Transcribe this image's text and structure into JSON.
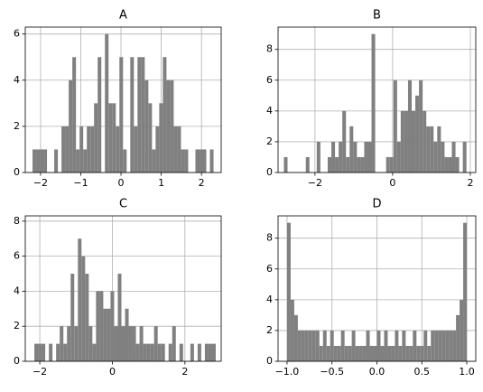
{
  "chart_data": [
    {
      "type": "histogram",
      "title": "A",
      "color": "#808080",
      "grid": true,
      "bins": [
        -2.2,
        -2.11,
        -2.02,
        -1.93,
        -1.84,
        -1.75,
        -1.66,
        -1.57,
        -1.48,
        -1.39,
        -1.3,
        -1.21,
        -1.12,
        -1.03,
        -0.94,
        -0.85,
        -0.76,
        -0.67,
        -0.58,
        -0.49,
        -0.4,
        -0.31,
        -0.22,
        -0.13,
        -0.04,
        0.05,
        0.14,
        0.23,
        0.32,
        0.41,
        0.5,
        0.59,
        0.68,
        0.77,
        0.86,
        0.95,
        1.04,
        1.13,
        1.22,
        1.31,
        1.4,
        1.49,
        1.58,
        1.67,
        1.76,
        1.85,
        1.94,
        2.03,
        2.12,
        2.21,
        2.3
      ],
      "values": [
        1,
        1,
        1,
        1,
        0,
        0,
        1,
        0,
        2,
        2,
        4,
        5,
        1,
        2,
        1,
        2,
        2,
        3,
        5,
        0,
        6,
        3,
        3,
        2,
        5,
        1,
        0,
        5,
        2,
        5,
        5,
        4,
        3,
        1,
        2,
        3,
        5,
        4,
        4,
        2,
        2,
        1,
        1,
        0,
        0,
        1,
        1,
        1,
        0,
        1
      ],
      "xlim": [
        -2.38,
        2.49
      ],
      "ylim": [
        0,
        6.3
      ],
      "xticks": [
        {
          "value": -2,
          "label": "−2"
        },
        {
          "value": -1,
          "label": "−1"
        },
        0,
        1,
        2
      ],
      "yticks": [
        0,
        2,
        4,
        6
      ]
    },
    {
      "type": "histogram",
      "title": "B",
      "color": "#808080",
      "grid": true,
      "bins": [
        -2.8,
        -2.706,
        -2.612,
        -2.518,
        -2.424,
        -2.33,
        -2.236,
        -2.142,
        -2.048,
        -1.954,
        -1.86,
        -1.766,
        -1.672,
        -1.578,
        -1.484,
        -1.39,
        -1.296,
        -1.202,
        -1.108,
        -1.014,
        -0.92,
        -0.826,
        -0.732,
        -0.638,
        -0.544,
        -0.45,
        -0.356,
        -0.262,
        -0.168,
        -0.074,
        0.02,
        0.114,
        0.208,
        0.302,
        0.396,
        0.49,
        0.584,
        0.678,
        0.772,
        0.866,
        0.96,
        1.054,
        1.148,
        1.242,
        1.336,
        1.43,
        1.524,
        1.618,
        1.712,
        1.806,
        1.9
      ],
      "values": [
        1,
        0,
        0,
        0,
        0,
        0,
        1,
        0,
        0,
        2,
        0,
        0,
        1,
        2,
        1,
        2,
        4,
        1,
        3,
        2,
        1,
        1,
        2,
        2,
        9,
        0,
        0,
        0,
        1,
        1,
        6,
        2,
        4,
        4,
        6,
        4,
        5,
        6,
        4,
        3,
        3,
        2,
        3,
        2,
        1,
        1,
        2,
        1,
        0,
        2
      ],
      "xlim": [
        -2.95,
        2.14
      ],
      "ylim": [
        0,
        9.45
      ],
      "xticks": [
        {
          "value": -2,
          "label": "−2"
        },
        0,
        2
      ],
      "yticks": [
        0,
        2,
        4,
        6,
        8
      ]
    },
    {
      "type": "histogram",
      "title": "C",
      "color": "#808080",
      "grid": true,
      "bins": [
        -2.15,
        -2.05,
        -1.95,
        -1.85,
        -1.75,
        -1.65,
        -1.55,
        -1.45,
        -1.35,
        -1.25,
        -1.15,
        -1.05,
        -0.95,
        -0.85,
        -0.75,
        -0.65,
        -0.55,
        -0.45,
        -0.35,
        -0.25,
        -0.15,
        -0.05,
        0.05,
        0.15,
        0.25,
        0.35,
        0.45,
        0.55,
        0.65,
        0.75,
        0.85,
        0.95,
        1.05,
        1.15,
        1.25,
        1.35,
        1.45,
        1.55,
        1.65,
        1.75,
        1.85,
        1.95,
        2.05,
        2.15,
        2.25,
        2.35,
        2.45,
        2.55,
        2.65,
        2.75,
        2.85
      ],
      "values": [
        1,
        1,
        1,
        0,
        1,
        0,
        1,
        2,
        1,
        2,
        5,
        2,
        7,
        6,
        5,
        2,
        1,
        4,
        4,
        3,
        3,
        4,
        2,
        5,
        2,
        3,
        2,
        2,
        1,
        2,
        1,
        1,
        1,
        2,
        1,
        1,
        0,
        1,
        2,
        0,
        1,
        0,
        0,
        1,
        0,
        1,
        0,
        1,
        1,
        1
      ],
      "xlim": [
        -2.4,
        3.0
      ],
      "ylim": [
        0,
        8.3
      ],
      "xticks": [
        {
          "value": -2,
          "label": "−2"
        },
        0,
        2
      ],
      "yticks": [
        0,
        2,
        4,
        6,
        8
      ]
    },
    {
      "type": "histogram",
      "title": "D",
      "color": "#808080",
      "grid": true,
      "bins": [
        -1,
        -0.96,
        -0.92,
        -0.88,
        -0.84,
        -0.8,
        -0.76,
        -0.72,
        -0.68,
        -0.64,
        -0.6,
        -0.56,
        -0.52,
        -0.48,
        -0.44,
        -0.4,
        -0.36,
        -0.32,
        -0.28,
        -0.24,
        -0.2,
        -0.16,
        -0.12,
        -0.08,
        -0.04,
        0,
        0.04,
        0.08,
        0.12,
        0.16,
        0.2,
        0.24,
        0.28,
        0.32,
        0.36,
        0.4,
        0.44,
        0.48,
        0.52,
        0.56,
        0.6,
        0.64,
        0.68,
        0.72,
        0.76,
        0.8,
        0.84,
        0.88,
        0.92,
        0.96,
        1
      ],
      "values": [
        9,
        4,
        3,
        2,
        2,
        2,
        2,
        2,
        2,
        1,
        2,
        1,
        2,
        1,
        1,
        2,
        1,
        1,
        2,
        1,
        1,
        1,
        2,
        1,
        1,
        2,
        1,
        2,
        1,
        1,
        2,
        1,
        2,
        1,
        1,
        2,
        1,
        1,
        2,
        1,
        2,
        2,
        2,
        2,
        2,
        2,
        2,
        3,
        4,
        9
      ],
      "xlim": [
        -1.1,
        1.1
      ],
      "ylim": [
        0,
        9.45
      ],
      "xticks": [
        {
          "value": -1,
          "label": "−1.0"
        },
        {
          "value": -0.5,
          "label": "−0.5"
        },
        {
          "value": 0,
          "label": "0.0"
        },
        0.5,
        {
          "value": 1,
          "label": "1.0"
        }
      ],
      "yticks": [
        0,
        2,
        4,
        6,
        8
      ]
    }
  ]
}
